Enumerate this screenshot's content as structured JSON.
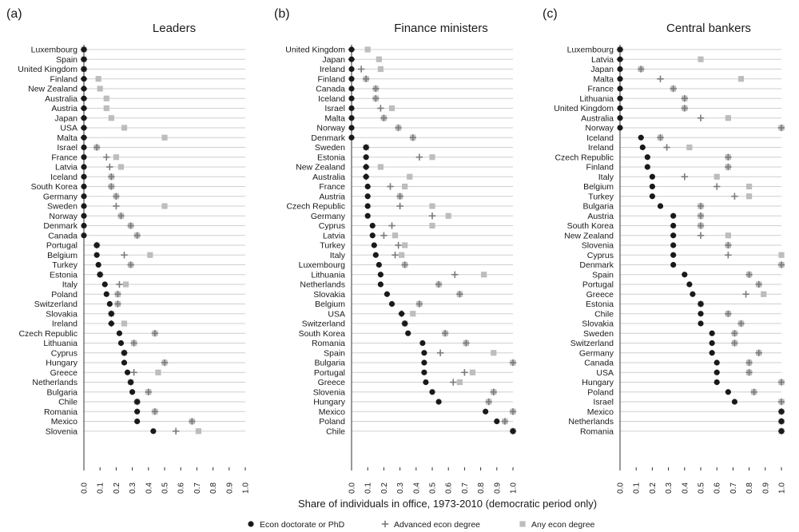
{
  "chart_data": [
    {
      "type": "scatter",
      "panel_label": "(a)",
      "title": "Leaders",
      "xlim": [
        0,
        1
      ],
      "x_ticks": [
        "0.0",
        "0.1",
        "0.2",
        "0.3",
        "0.4",
        "0.5",
        "0.6",
        "0.7",
        "0.8",
        "0.9",
        "1.0"
      ],
      "categories": [
        "Luxembourg",
        "Spain",
        "United Kingdom",
        "Finland",
        "New Zealand",
        "Australia",
        "Austria",
        "Japan",
        "USA",
        "Malta",
        "Israel",
        "France",
        "Latvia",
        "Iceland",
        "South Korea",
        "Germany",
        "Sweden",
        "Norway",
        "Denmark",
        "Canada",
        "Portugal",
        "Belgium",
        "Turkey",
        "Estonia",
        "Italy",
        "Poland",
        "Switzerland",
        "Slovakia",
        "Ireland",
        "Czech Republic",
        "Lithuania",
        "Cyprus",
        "Hungary",
        "Greece",
        "Netherlands",
        "Bulgaria",
        "Chile",
        "Romania",
        "Mexico",
        "Slovenia"
      ],
      "series": [
        {
          "name": "Econ doctorate or PhD",
          "values": [
            0,
            0,
            0,
            0,
            0,
            0,
            0,
            0,
            0,
            0,
            0,
            0,
            0,
            0,
            0,
            0,
            0,
            0,
            0,
            0,
            0.08,
            0.08,
            0.09,
            0.1,
            0.13,
            0.14,
            0.16,
            0.17,
            0.17,
            0.22,
            0.23,
            0.25,
            0.25,
            0.27,
            0.29,
            0.3,
            0.33,
            0.33,
            0.33,
            0.43
          ]
        },
        {
          "name": "Advanced econ degree",
          "values": [
            0,
            0,
            0,
            0,
            0,
            0,
            0,
            0,
            0,
            0,
            0.08,
            0.14,
            0.16,
            0.17,
            0.17,
            0.2,
            0.2,
            0.23,
            0.29,
            0.33,
            0.08,
            0.25,
            0.29,
            0.1,
            0.22,
            0.21,
            0.21,
            0.17,
            0.17,
            0.44,
            0.31,
            0.25,
            0.5,
            0.31,
            0.29,
            0.4,
            0.33,
            0.44,
            0.67,
            0.57
          ]
        },
        {
          "name": "Any econ degree",
          "values": [
            0,
            0,
            0,
            0.09,
            0.1,
            0.14,
            0.14,
            0.17,
            0.25,
            0.5,
            0.08,
            0.2,
            0.23,
            0.17,
            0.17,
            0.2,
            0.5,
            0.23,
            0.29,
            0.33,
            0.08,
            0.41,
            0.29,
            0.1,
            0.26,
            0.21,
            0.21,
            0.17,
            0.25,
            0.44,
            0.31,
            0.25,
            0.5,
            0.46,
            0.29,
            0.4,
            0.33,
            0.44,
            0.67,
            0.71
          ]
        }
      ]
    },
    {
      "type": "scatter",
      "panel_label": "(b)",
      "title": "Finance ministers",
      "xlim": [
        0,
        1
      ],
      "x_ticks": [
        "0.0",
        "0.1",
        "0.2",
        "0.3",
        "0.4",
        "0.5",
        "0.6",
        "0.7",
        "0.8",
        "0.9",
        "1.0"
      ],
      "categories": [
        "United Kingdom",
        "Japan",
        "Ireland",
        "Finland",
        "Canada",
        "Iceland",
        "Israel",
        "Malta",
        "Norway",
        "Denmark",
        "Sweden",
        "Estonia",
        "New Zealand",
        "Australia",
        "France",
        "Austria",
        "Czech Republic",
        "Germany",
        "Cyprus",
        "Latvia",
        "Turkey",
        "Italy",
        "Luxembourg",
        "Lithuania",
        "Netherlands",
        "Slovakia",
        "Belgium",
        "USA",
        "Switzerland",
        "South Korea",
        "Romania",
        "Spain",
        "Bulgaria",
        "Portugal",
        "Greece",
        "Slovenia",
        "Hungary",
        "Mexico",
        "Poland",
        "Chile"
      ],
      "series": [
        {
          "name": "Econ doctorate or PhD",
          "values": [
            0,
            0,
            0,
            0,
            0,
            0,
            0,
            0,
            0,
            0,
            0.09,
            0.09,
            0.09,
            0.09,
            0.1,
            0.1,
            0.1,
            0.1,
            0.13,
            0.13,
            0.14,
            0.15,
            0.17,
            0.18,
            0.18,
            0.22,
            0.25,
            0.31,
            0.33,
            0.35,
            0.44,
            0.45,
            0.45,
            0.45,
            0.46,
            0.5,
            0.54,
            0.83,
            0.9,
            1.0
          ]
        },
        {
          "name": "Advanced econ degree",
          "values": [
            0,
            0,
            0.06,
            0.09,
            0.15,
            0.15,
            0.18,
            0.2,
            0.29,
            0.38,
            0.09,
            0.42,
            0.09,
            0.09,
            0.24,
            0.3,
            0.3,
            0.5,
            0.25,
            0.2,
            0.29,
            0.27,
            0.33,
            0.64,
            0.54,
            0.67,
            0.42,
            0.31,
            0.33,
            0.58,
            0.71,
            0.55,
            1.0,
            0.7,
            0.63,
            0.88,
            0.85,
            1.0,
            0.95,
            1.0
          ]
        },
        {
          "name": "Any econ degree",
          "values": [
            0.1,
            0.17,
            0.18,
            0.09,
            0.15,
            0.15,
            0.25,
            0.2,
            0.29,
            0.38,
            0.09,
            0.5,
            0.18,
            0.36,
            0.33,
            0.3,
            0.5,
            0.6,
            0.5,
            0.27,
            0.33,
            0.31,
            0.33,
            0.82,
            0.54,
            0.67,
            0.42,
            0.38,
            0.33,
            0.58,
            0.71,
            0.88,
            1.0,
            0.75,
            0.67,
            0.88,
            0.85,
            1.0,
            0.95,
            1.0
          ]
        }
      ]
    },
    {
      "type": "scatter",
      "panel_label": "(c)",
      "title": "Central bankers",
      "xlim": [
        0,
        1
      ],
      "x_ticks": [
        "0.0",
        "0.1",
        "0.2",
        "0.3",
        "0.4",
        "0.5",
        "0.6",
        "0.7",
        "0.8",
        "0.9",
        "1.0"
      ],
      "categories": [
        "Luxembourg",
        "Latvia",
        "Japan",
        "Malta",
        "France",
        "Lithuania",
        "United Kingdom",
        "Australia",
        "Norway",
        "Iceland",
        "Ireland",
        "Czech Republic",
        "Finland",
        "Italy",
        "Belgium",
        "Turkey",
        "Bulgaria",
        "Austria",
        "South Korea",
        "New Zealand",
        "Slovenia",
        "Cyprus",
        "Denmark",
        "Spain",
        "Portugal",
        "Greece",
        "Estonia",
        "Chile",
        "Slovakia",
        "Sweden",
        "Switzerland",
        "Germany",
        "Canada",
        "USA",
        "Hungary",
        "Poland",
        "Israel",
        "Mexico",
        "Netherlands",
        "Romania"
      ],
      "series": [
        {
          "name": "Econ doctorate or PhD",
          "values": [
            0,
            0,
            0,
            0,
            0,
            0,
            0,
            0,
            0,
            0.13,
            0.14,
            0.17,
            0.17,
            0.2,
            0.2,
            0.2,
            0.25,
            0.33,
            0.33,
            0.33,
            0.33,
            0.33,
            0.33,
            0.4,
            0.43,
            0.45,
            0.5,
            0.5,
            0.5,
            0.57,
            0.57,
            0.57,
            0.6,
            0.6,
            0.6,
            0.67,
            0.71,
            1.0,
            1.0,
            1.0
          ]
        },
        {
          "name": "Advanced econ degree",
          "values": [
            0,
            0,
            0.13,
            0.25,
            0.33,
            0.4,
            0.4,
            0.5,
            1.0,
            0.25,
            0.29,
            0.67,
            0.67,
            0.4,
            0.6,
            0.71,
            0.5,
            0.5,
            0.5,
            0.5,
            0.67,
            0.67,
            1.0,
            0.8,
            0.86,
            0.78,
            0.5,
            0.67,
            0.75,
            0.71,
            0.71,
            0.86,
            0.8,
            0.8,
            1.0,
            0.83,
            1.0,
            1.0,
            1.0,
            1.0
          ]
        },
        {
          "name": "Any econ degree",
          "values": [
            0,
            0.5,
            0.13,
            0.75,
            0.33,
            0.4,
            0.4,
            0.67,
            1.0,
            0.25,
            0.43,
            0.67,
            0.67,
            0.6,
            0.8,
            0.8,
            0.5,
            0.5,
            0.5,
            0.67,
            0.67,
            1.0,
            1.0,
            0.8,
            0.86,
            0.89,
            0.5,
            0.67,
            0.75,
            0.71,
            0.71,
            0.86,
            0.8,
            0.8,
            1.0,
            0.83,
            1.0,
            1.0,
            1.0,
            1.0
          ]
        }
      ]
    }
  ],
  "figure": {
    "xlabel": "Share of individuals in office, 1973-2010 (democratic period only)",
    "legend": [
      {
        "name": "Econ doctorate or PhD",
        "marker": "dot"
      },
      {
        "name": "Advanced econ degree",
        "marker": "plus"
      },
      {
        "name": "Any econ degree",
        "marker": "square"
      }
    ],
    "legend_position": "bottom"
  },
  "colors": {
    "phd": "#1a1a1a",
    "advanced": "#7a7a7a",
    "any": "#bdbdbd",
    "grid": "#cfcfcf"
  }
}
